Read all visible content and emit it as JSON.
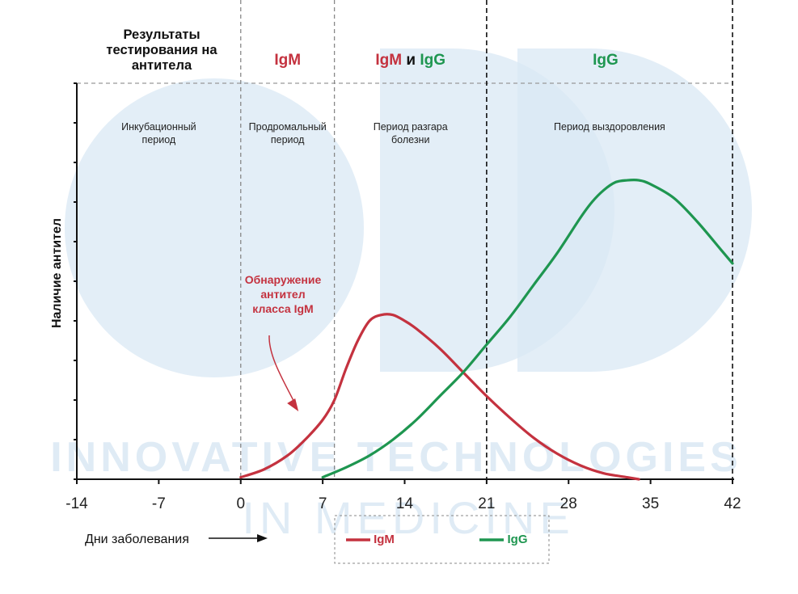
{
  "chart_data": {
    "type": "line",
    "xlabel": "Дни заболевания",
    "ylabel": "Наличие антител",
    "x_ticks": [
      -14,
      -7,
      0,
      7,
      14,
      21,
      28,
      35,
      42
    ],
    "xlim": [
      -14,
      42
    ],
    "ylim": [
      0,
      10
    ],
    "grid": false,
    "legend_position": "bottom-center",
    "results_header": [
      "Результаты",
      "тестирования на",
      "антитела"
    ],
    "phase_results": [
      {
        "parts": [
          {
            "text": "IgM",
            "color": "#c4323f"
          }
        ]
      },
      {
        "parts": [
          {
            "text": "IgM",
            "color": "#c4323f"
          },
          {
            "text": " и ",
            "color": "#111111"
          },
          {
            "text": "IgG",
            "color": "#1e9650"
          }
        ]
      },
      {
        "parts": [
          {
            "text": "IgG",
            "color": "#1e9650"
          }
        ]
      }
    ],
    "phases": [
      {
        "lines": [
          "Инкубационный",
          "период"
        ],
        "start": -14,
        "end": 0
      },
      {
        "lines": [
          "Продромальный",
          "период"
        ],
        "start": 0,
        "end": 8
      },
      {
        "lines": [
          "Период разгара",
          "болезни"
        ],
        "start": 8,
        "end": 21
      },
      {
        "lines": [
          "Период выздоровления"
        ],
        "start": 21,
        "end": 42
      }
    ],
    "vlines": [
      {
        "x": 0,
        "style": "grey"
      },
      {
        "x": 8,
        "style": "grey"
      },
      {
        "x": 21,
        "style": "black"
      },
      {
        "x": 42,
        "style": "black"
      }
    ],
    "annotation": {
      "lines": [
        "Обнаружение",
        "антител",
        "класса IgM"
      ],
      "color": "#c4323f",
      "points_to_x": 5
    },
    "series": [
      {
        "name": "IgM",
        "color": "#c4323f",
        "x": [
          0,
          2,
          4,
          5.5,
          7,
          8,
          9,
          10,
          11,
          12,
          13,
          14,
          15,
          17,
          19,
          21,
          23,
          25,
          27,
          29,
          31,
          33,
          34
        ],
        "y": [
          0.05,
          0.25,
          0.6,
          1.0,
          1.5,
          2.0,
          2.8,
          3.5,
          4.0,
          4.15,
          4.15,
          4.0,
          3.8,
          3.3,
          2.7,
          2.1,
          1.55,
          1.05,
          0.65,
          0.35,
          0.15,
          0.05,
          0.0
        ]
      },
      {
        "name": "IgG",
        "color": "#1e9650",
        "x": [
          7,
          9,
          11,
          13,
          15,
          17,
          19,
          21,
          23,
          25,
          27,
          29,
          30,
          31,
          32,
          33,
          34,
          35,
          37,
          39,
          41,
          42
        ],
        "y": [
          0.05,
          0.3,
          0.6,
          1.0,
          1.5,
          2.1,
          2.7,
          3.4,
          4.1,
          4.9,
          5.7,
          6.6,
          7.0,
          7.3,
          7.5,
          7.55,
          7.55,
          7.45,
          7.1,
          6.5,
          5.8,
          5.45
        ]
      }
    ]
  },
  "watermark": {
    "line1": "INNOVATIVE TECHNOLOGIES",
    "line2": "IN MEDICINE"
  }
}
